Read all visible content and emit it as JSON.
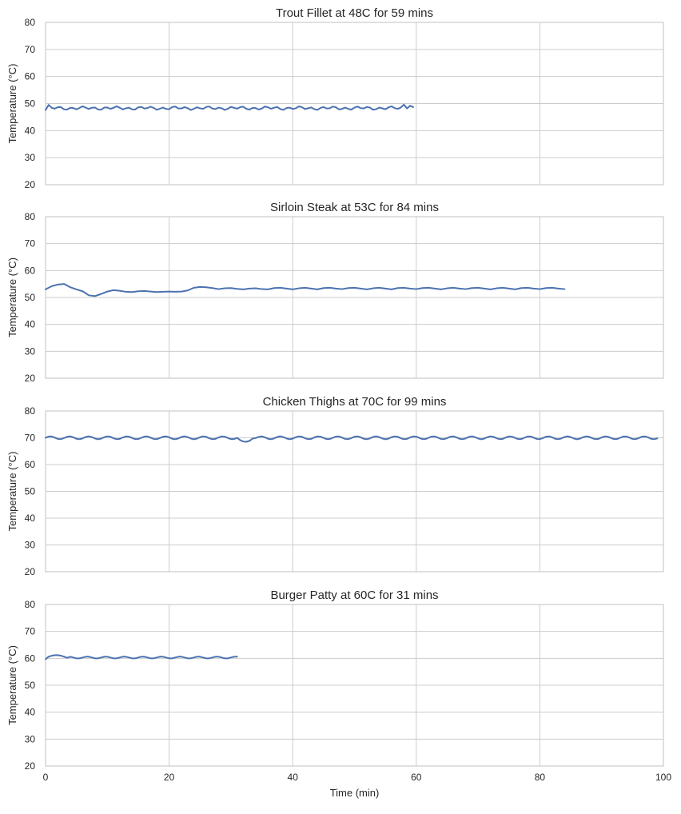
{
  "chart_data": [
    {
      "type": "line",
      "title": "Trout Fillet at 48C for 59 mins",
      "xlabel": "",
      "ylabel": "Temperature (°C)",
      "xlim": [
        0,
        100
      ],
      "ylim": [
        20,
        80
      ],
      "xticks": [
        0,
        20,
        40,
        60,
        80,
        100
      ],
      "xtick_labels_visible": false,
      "yticks": [
        20,
        30,
        40,
        50,
        60,
        70,
        80
      ],
      "grid": true,
      "series": [
        {
          "color": "#4c72b0",
          "x": [],
          "y": []
        }
      ]
    },
    {
      "type": "line",
      "title": "Sirloin Steak at 53C for 84 mins",
      "xlabel": "",
      "ylabel": "Temperature (°C)",
      "xlim": [
        0,
        100
      ],
      "ylim": [
        20,
        80
      ],
      "xticks": [
        0,
        20,
        40,
        60,
        80,
        100
      ],
      "xtick_labels_visible": false,
      "yticks": [
        20,
        30,
        40,
        50,
        60,
        70,
        80
      ],
      "grid": true,
      "series": [
        {
          "color": "#4c72b0",
          "x": [
            0,
            1,
            2,
            3,
            4,
            5,
            6,
            7,
            8,
            9,
            10,
            11,
            12,
            13,
            14,
            15,
            16,
            17,
            18,
            19,
            20,
            21,
            22,
            23,
            24,
            25,
            26,
            27,
            28,
            29,
            30,
            31,
            32,
            33,
            34,
            35,
            36,
            37,
            38,
            39,
            40,
            41,
            42,
            43,
            44,
            45,
            46,
            47,
            48,
            49,
            50,
            51,
            52,
            53,
            54,
            55,
            56,
            57,
            58,
            59,
            60,
            61,
            62,
            63,
            64,
            65,
            66,
            67,
            68,
            69,
            70,
            71,
            72,
            73,
            74,
            75,
            76,
            77,
            78,
            79,
            80,
            81,
            82,
            83,
            84
          ],
          "y": [
            53.0,
            54.2,
            54.8,
            55.0,
            53.8,
            53.0,
            52.3,
            50.8,
            50.5,
            51.3,
            52.2,
            52.7,
            52.5,
            52.1,
            52.0,
            52.3,
            52.4,
            52.2,
            52.0,
            52.1,
            52.2,
            52.1,
            52.2,
            52.6,
            53.6,
            53.9,
            53.8,
            53.5,
            53.1,
            53.4,
            53.5,
            53.2,
            53.0,
            53.3,
            53.4,
            53.1,
            53.0,
            53.5,
            53.6,
            53.3,
            53.0,
            53.4,
            53.6,
            53.3,
            53.0,
            53.5,
            53.6,
            53.3,
            53.1,
            53.5,
            53.6,
            53.3,
            53.0,
            53.4,
            53.6,
            53.3,
            53.0,
            53.5,
            53.6,
            53.3,
            53.1,
            53.5,
            53.6,
            53.3,
            53.0,
            53.4,
            53.6,
            53.3,
            53.1,
            53.5,
            53.6,
            53.3,
            53.0,
            53.4,
            53.6,
            53.3,
            53.0,
            53.5,
            53.6,
            53.3,
            53.1,
            53.5,
            53.6,
            53.3,
            53.1
          ]
        }
      ]
    },
    {
      "type": "line",
      "title": "Chicken Thighs at 70C for 99 mins",
      "xlabel": "",
      "ylabel": "Temperature (°C)",
      "xlim": [
        0,
        100
      ],
      "ylim": [
        20,
        80
      ],
      "xticks": [
        0,
        20,
        40,
        60,
        80,
        100
      ],
      "xtick_labels_visible": false,
      "yticks": [
        20,
        30,
        40,
        50,
        60,
        70,
        80
      ],
      "grid": true,
      "series": [
        {
          "color": "#4c72b0",
          "x": [],
          "y": []
        }
      ]
    },
    {
      "type": "line",
      "title": "Burger Patty at 60C for 31 mins",
      "xlabel": "Time (min)",
      "ylabel": "Temperature (°C)",
      "xlim": [
        0,
        100
      ],
      "ylim": [
        20,
        80
      ],
      "xticks": [
        0,
        20,
        40,
        60,
        80,
        100
      ],
      "xtick_labels_visible": true,
      "yticks": [
        20,
        30,
        40,
        50,
        60,
        70,
        80
      ],
      "grid": true,
      "series": [
        {
          "color": "#4c72b0",
          "x": [],
          "y": []
        }
      ]
    }
  ]
}
